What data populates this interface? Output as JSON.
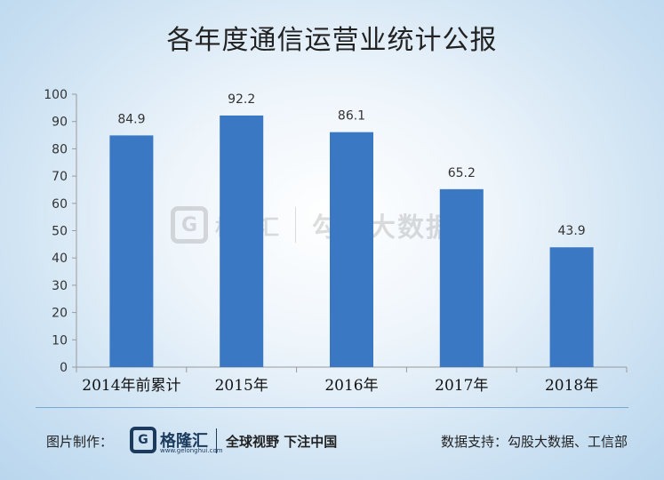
{
  "title": "各年度通信运营业统计公报",
  "chart_data": {
    "type": "bar",
    "title": "各年度通信运营业统计公报",
    "categories": [
      "2014年前累计",
      "2015年",
      "2016年",
      "2017年",
      "2018年"
    ],
    "values": [
      84.9,
      92.2,
      86.1,
      65.2,
      43.9
    ],
    "value_labels": [
      "84.9",
      "92.2",
      "86.1",
      "65.2",
      "43.9"
    ],
    "ylim": [
      0,
      100
    ],
    "yticks": [
      0,
      10,
      20,
      30,
      40,
      50,
      60,
      70,
      80,
      90,
      100
    ],
    "xlabel": "",
    "ylabel": "",
    "grid": false,
    "bar_color": "#3a78c4"
  },
  "watermark": {
    "logo": "G",
    "brand": "格隆汇",
    "text": "勾股大数据"
  },
  "footer": {
    "made_by_label": "图片制作：",
    "logo": "G",
    "brand": "格隆汇",
    "brand_sub": "www.gelonghui.com",
    "slogan": "全球视野 下注中国",
    "source": "数据支持：勾股大数据、工信部"
  }
}
